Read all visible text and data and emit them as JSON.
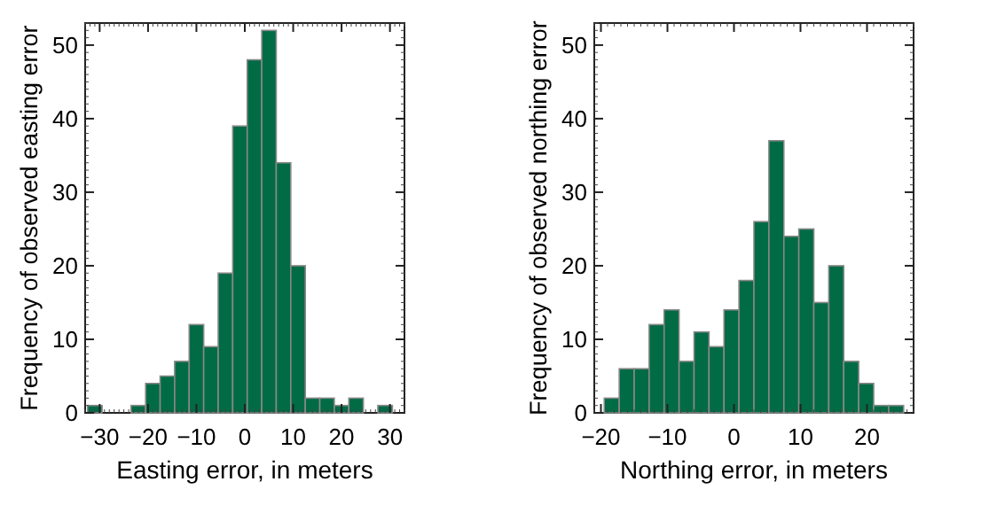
{
  "chart_data": [
    {
      "type": "histogram",
      "xlabel": "Easting error, in meters",
      "ylabel": "Frequency of observed easting error",
      "color": "#006b45",
      "bins": [
        -32.5,
        -29.5,
        -26.5,
        -23.5,
        -20.5,
        -17.5,
        -14.5,
        -11.5,
        -8.5,
        -5.5,
        -2.5,
        0.5,
        3.5,
        6.5,
        9.5,
        12.5,
        15.5,
        18.5,
        21.5,
        24.5,
        27.5,
        30.5
      ],
      "values": [
        1,
        0,
        0,
        1,
        4,
        5,
        7,
        12,
        9,
        19,
        39,
        48,
        52,
        34,
        20,
        2,
        2,
        1,
        2,
        0,
        1
      ],
      "xlim": [
        -33,
        33
      ],
      "xticks": [
        -30,
        -20,
        -10,
        0,
        10,
        20,
        30
      ],
      "ylim": [
        0,
        53
      ],
      "yticks": [
        0,
        10,
        20,
        30,
        40,
        50
      ]
    },
    {
      "type": "histogram",
      "xlabel": "Northing error, in meters",
      "ylabel": "Frequency of observed northing error",
      "color": "#006b45",
      "bins": [
        -19.5,
        -17.25,
        -15,
        -12.75,
        -10.5,
        -8.25,
        -6,
        -3.75,
        -1.5,
        0.75,
        3,
        5.25,
        7.5,
        9.75,
        12,
        14.25,
        16.5,
        18.75,
        21,
        23.25,
        25.5
      ],
      "values": [
        2,
        6,
        6,
        12,
        14,
        7,
        11,
        9,
        14,
        18,
        26,
        37,
        24,
        25,
        15,
        20,
        7,
        4,
        1,
        1
      ],
      "xlim": [
        -21,
        27
      ],
      "xticks": [
        -20,
        -10,
        0,
        10,
        20
      ],
      "ylim": [
        0,
        53
      ],
      "yticks": [
        0,
        10,
        20,
        30,
        40,
        50
      ]
    }
  ]
}
